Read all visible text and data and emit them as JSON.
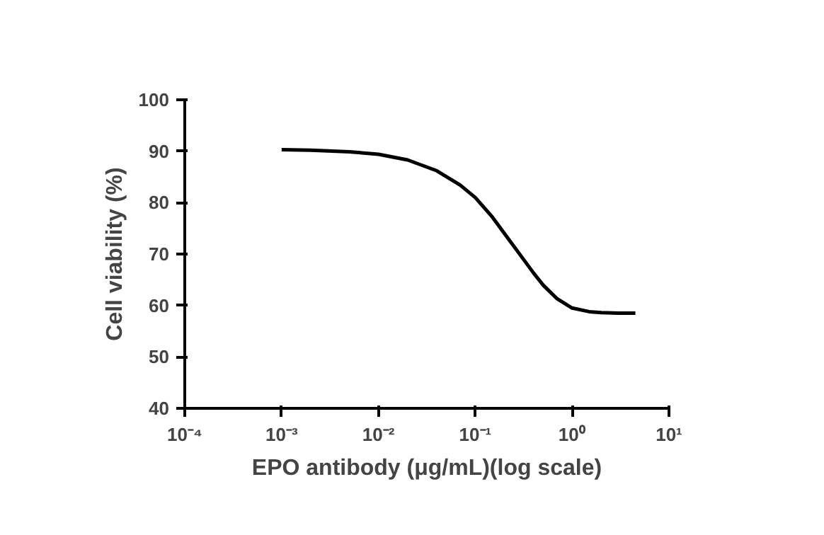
{
  "chart_data": {
    "type": "line",
    "xlabel": "EPO antibody (μg/mL)(log scale)",
    "ylabel": "Cell viability (%)",
    "log": "x",
    "grid": false,
    "marker": "none",
    "line_style": "solid",
    "xlim": [
      0.0001,
      10
    ],
    "ylim": [
      40,
      100
    ],
    "xticks": [
      {
        "value": 0.0001,
        "label": "10⁻⁴"
      },
      {
        "value": 0.001,
        "label": "10⁻³"
      },
      {
        "value": 0.01,
        "label": "10⁻²"
      },
      {
        "value": 0.1,
        "label": "10⁻¹"
      },
      {
        "value": 1,
        "label": "10⁰"
      },
      {
        "value": 10,
        "label": "10¹"
      }
    ],
    "yticks": [
      40,
      50,
      60,
      70,
      80,
      90,
      100
    ],
    "series": [
      {
        "color": "#000000",
        "x": [
          0.001,
          0.002,
          0.005,
          0.01,
          0.02,
          0.04,
          0.07,
          0.1,
          0.15,
          0.2,
          0.3,
          0.4,
          0.5,
          0.7,
          1,
          1.5,
          2,
          3,
          4.5
        ],
        "values": [
          90.3,
          90.2,
          89.9,
          89.4,
          88.3,
          86.2,
          83.4,
          81,
          77.2,
          74,
          69.5,
          66.3,
          64,
          61.3,
          59.5,
          58.8,
          58.6,
          58.5,
          58.5
        ]
      }
    ]
  }
}
